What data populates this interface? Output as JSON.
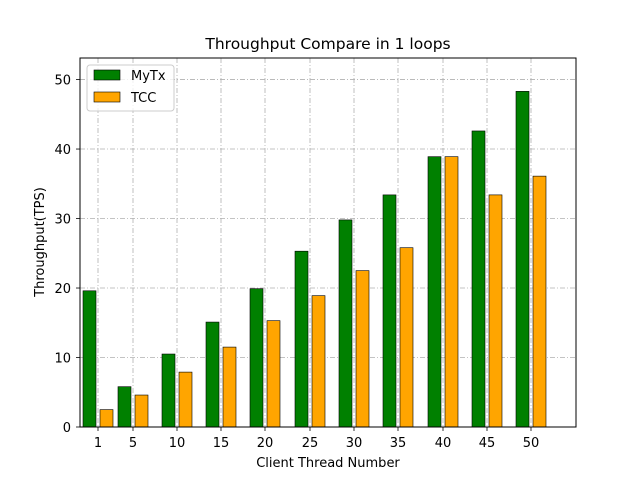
{
  "chart_data": {
    "type": "bar",
    "title": "Throughput Compare in 1 loops",
    "xlabel": "Client Thread Number",
    "ylabel": "Throughput(TPS)",
    "categories": [
      "1",
      "5",
      "10",
      "15",
      "20",
      "25",
      "30",
      "35",
      "40",
      "45",
      "50"
    ],
    "series": [
      {
        "name": "MyTx",
        "color": "#008000",
        "values": [
          19.6,
          5.8,
          10.5,
          15.1,
          19.9,
          25.3,
          29.8,
          33.4,
          38.9,
          42.6,
          48.3
        ]
      },
      {
        "name": "TCC",
        "color": "#FFA500",
        "values": [
          2.5,
          4.6,
          7.9,
          11.5,
          15.3,
          18.9,
          22.5,
          25.8,
          38.9,
          33.4,
          36.1
        ]
      }
    ],
    "ylim": [
      0,
      53.1
    ],
    "yticks": [
      0,
      10,
      20,
      30,
      40,
      50
    ],
    "grid": true,
    "legend_position": "top-left"
  }
}
